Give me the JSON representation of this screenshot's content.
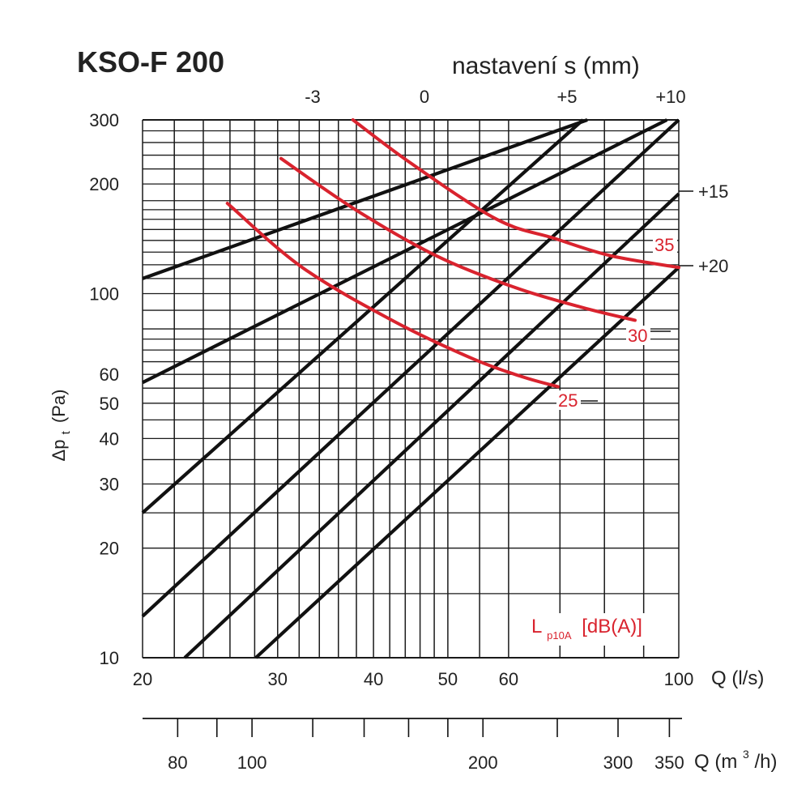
{
  "title": "KSO-F 200",
  "top_axis_title": "nastavení s (mm)",
  "legend_label_main": "L",
  "legend_label_sub": "p10A",
  "legend_label_unit": "[dB(A)]",
  "colors": {
    "grid": "#1a1a1a",
    "setting_line": "#111111",
    "noise_curve": "#d9232e",
    "noise_text": "#d9232e"
  },
  "chart_data": {
    "type": "line",
    "x_scale": "log",
    "y_scale": "log",
    "xlim": [
      20,
      100
    ],
    "ylim": [
      10,
      300
    ],
    "xlabel": "Q (l/s)",
    "ylabel": "Δp",
    "ylabel_sub": "t",
    "ylabel_unit": "(Pa)",
    "secondary_xlabel": "Q (m",
    "secondary_xlabel_sup": "3",
    "secondary_xlabel_end": "/h)",
    "x_ticks": [
      20,
      30,
      40,
      50,
      60,
      100
    ],
    "x_tick_labels": [
      "20",
      "30",
      "40",
      "50",
      "60",
      "100"
    ],
    "y_ticks": [
      10,
      20,
      30,
      40,
      50,
      60,
      100,
      200,
      300
    ],
    "y_tick_labels": [
      "10",
      "20",
      "30",
      "40",
      "50",
      "60",
      "100",
      "200",
      "300"
    ],
    "secondary_x_ticks": [
      80,
      100,
      200,
      300,
      350
    ],
    "secondary_x_tick_labels": [
      "80",
      "100",
      "200",
      "300",
      "350"
    ],
    "secondary_x_minor_ticks": [
      90,
      120,
      140,
      160,
      180,
      250
    ],
    "series": [
      {
        "name": "-3",
        "points": [
          [
            20,
            110
          ],
          [
            76,
            300
          ]
        ]
      },
      {
        "name": "0",
        "points": [
          [
            20,
            57
          ],
          [
            96.5,
            300
          ]
        ]
      },
      {
        "name": "+5",
        "points": [
          [
            20,
            25
          ],
          [
            75,
            300
          ]
        ]
      },
      {
        "name": "+10",
        "points": [
          [
            20,
            13
          ],
          [
            100,
            300
          ]
        ]
      },
      {
        "name": "+15",
        "points": [
          [
            22.7,
            10
          ],
          [
            100,
            188
          ]
        ]
      },
      {
        "name": "+20",
        "points": [
          [
            28.1,
            10
          ],
          [
            100,
            118
          ]
        ]
      }
    ],
    "noise_curves": [
      {
        "name": "35",
        "points": [
          [
            37.6,
            300
          ],
          [
            44.9,
            227
          ],
          [
            57.9,
            160
          ],
          [
            68.7,
            142
          ],
          [
            81.6,
            127
          ],
          [
            100,
            118
          ]
        ]
      },
      {
        "name": "30",
        "points": [
          [
            30.3,
            235
          ],
          [
            37.9,
            170
          ],
          [
            48.3,
            127
          ],
          [
            61.1,
            104
          ],
          [
            75,
            91.5
          ],
          [
            87.7,
            84.5
          ]
        ]
      },
      {
        "name": "25",
        "points": [
          [
            25.8,
            177
          ],
          [
            32.3,
            118
          ],
          [
            42.5,
            84
          ],
          [
            54.1,
            66
          ],
          [
            62.7,
            59
          ],
          [
            69.6,
            55.5
          ]
        ]
      }
    ]
  }
}
